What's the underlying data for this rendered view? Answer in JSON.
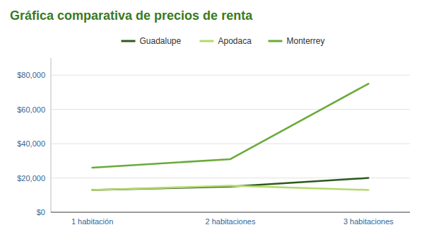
{
  "chart_data": {
    "type": "line",
    "title": "Gráfica comparativa de precios de renta",
    "categories": [
      "1 habitación",
      "2 habitaciones",
      "3 habitaciones"
    ],
    "series": [
      {
        "name": "Guadalupe",
        "color": "#2d5a1b",
        "values": [
          13000,
          15000,
          20000
        ]
      },
      {
        "name": "Apodaca",
        "color": "#b5d96b",
        "values": [
          13000,
          15500,
          13000
        ]
      },
      {
        "name": "Monterrey",
        "color": "#6aaa3a",
        "values": [
          26000,
          31000,
          75000
        ]
      }
    ],
    "ylim": [
      0,
      90000
    ],
    "yticks": [
      {
        "value": 0,
        "label": "$0"
      },
      {
        "value": 20000,
        "label": "$20,000"
      },
      {
        "value": 40000,
        "label": "$40,000"
      },
      {
        "value": 60000,
        "label": "$60,000"
      },
      {
        "value": 80000,
        "label": "$80,000"
      }
    ],
    "grid": true,
    "legend": "top"
  }
}
